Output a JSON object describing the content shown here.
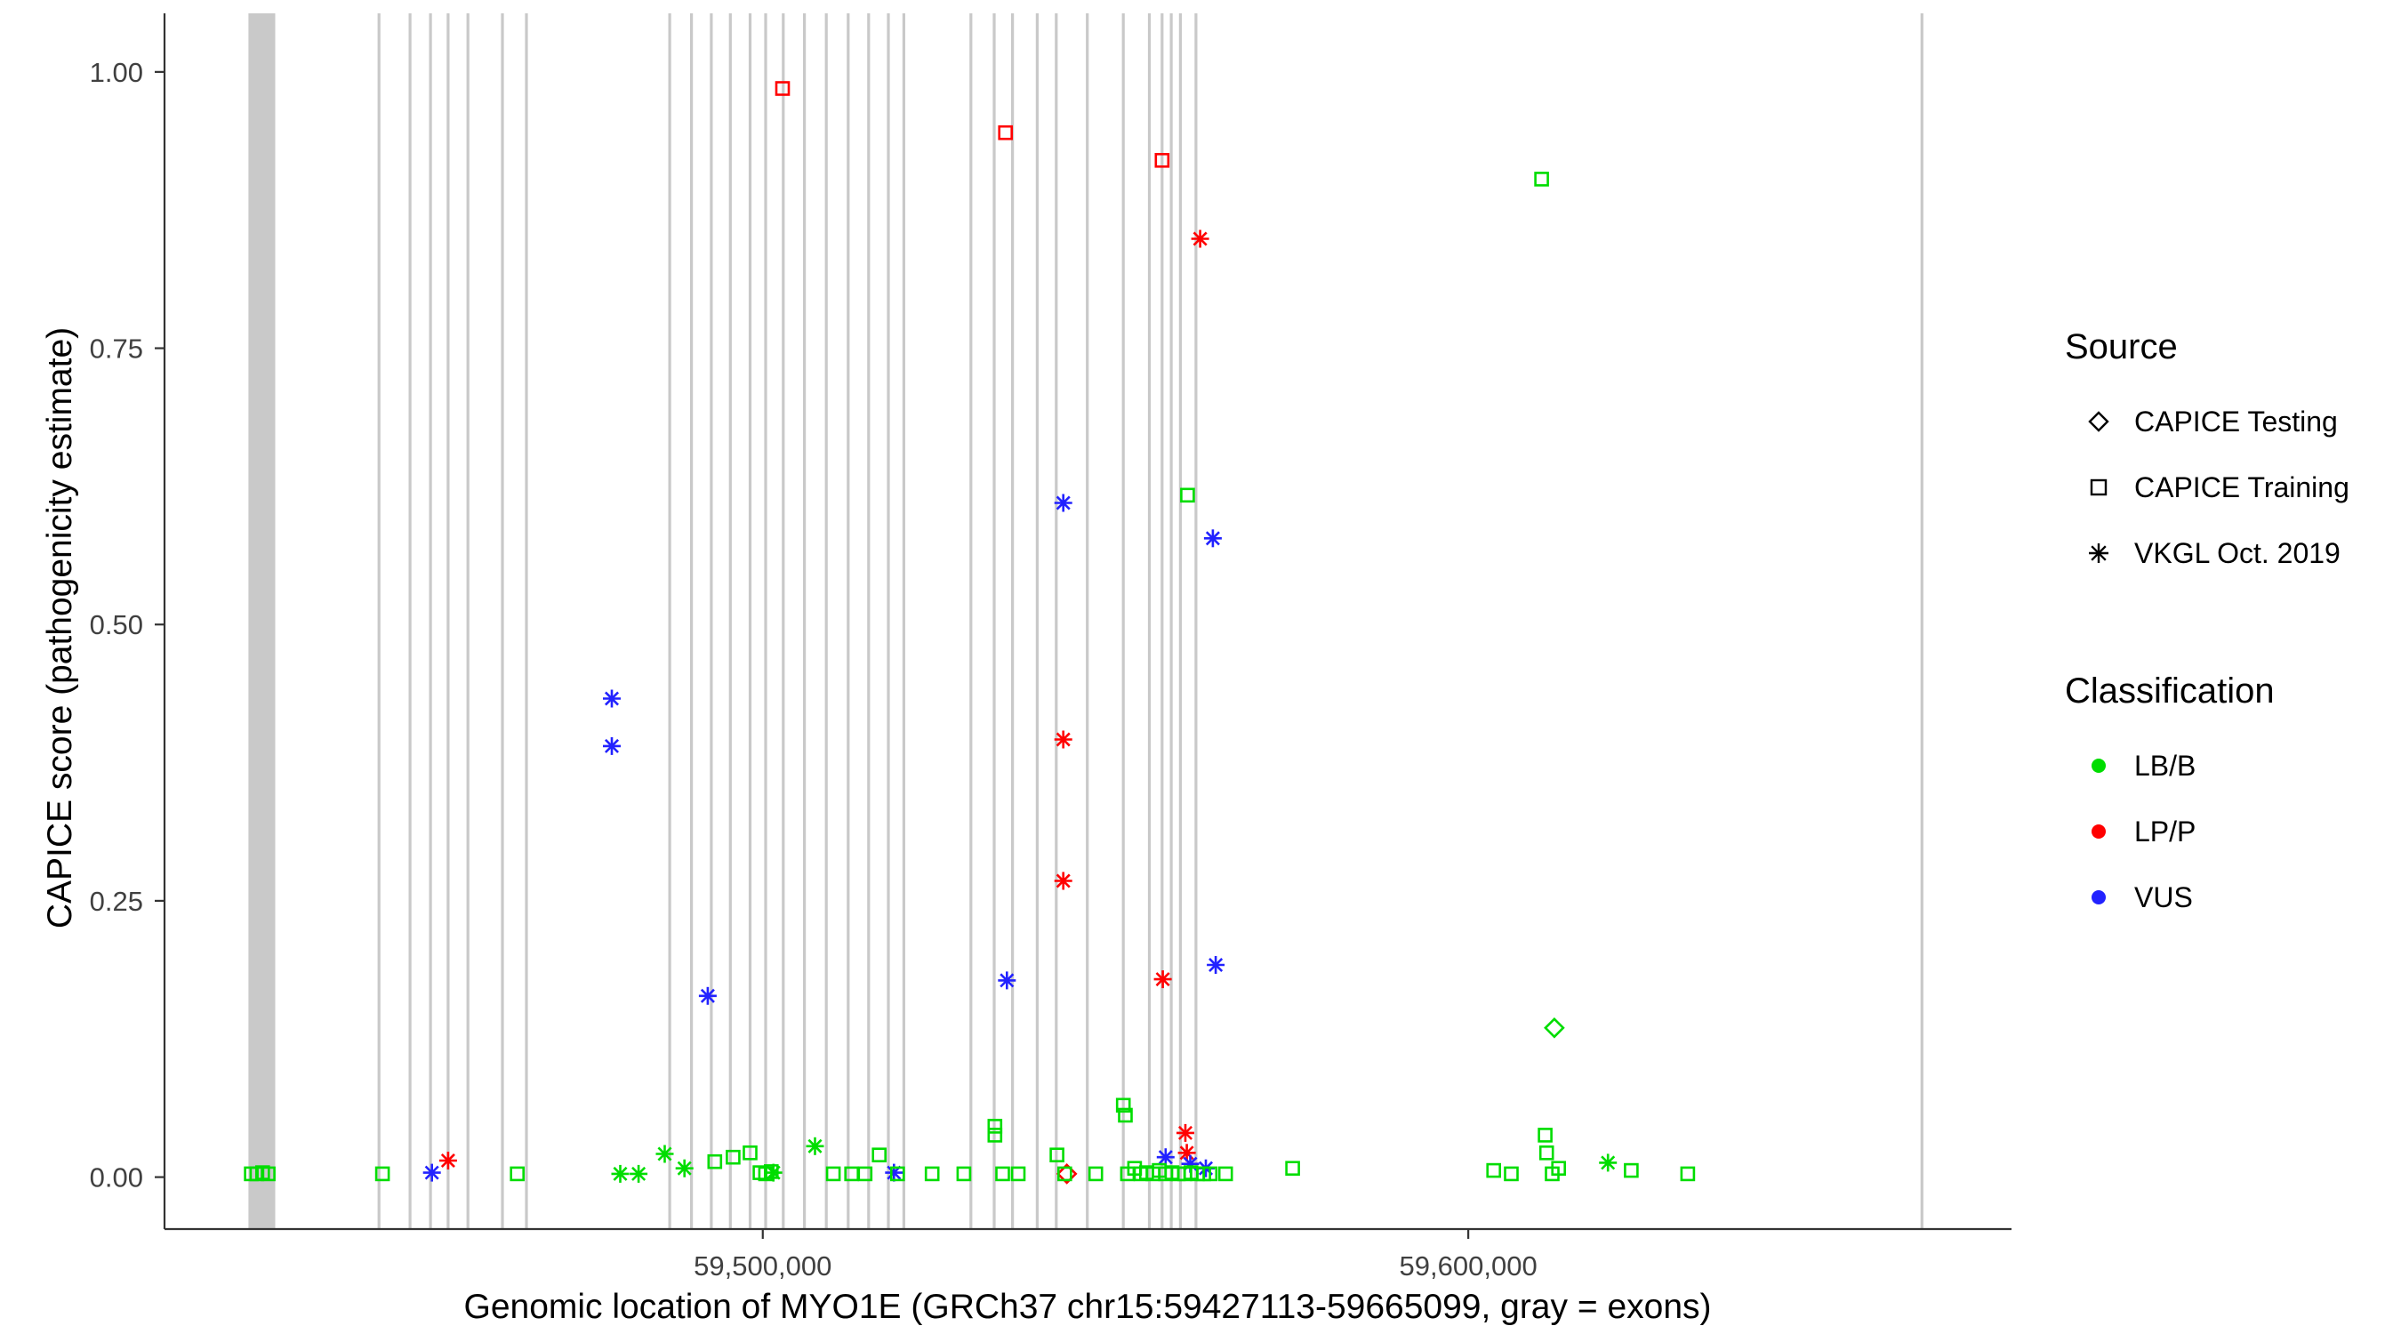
{
  "figure": {
    "y_axis_title": "CAPICE score (pathogenicity estimate)",
    "x_axis_title": "Genomic location of MYO1E (GRCh37 chr15:59427113-59665099, gray = exons)"
  },
  "legend": {
    "source": {
      "title": "Source",
      "items": [
        {
          "label": "CAPICE Testing",
          "shape": "diamond"
        },
        {
          "label": "CAPICE Training",
          "shape": "square"
        },
        {
          "label": "VKGL Oct. 2019",
          "shape": "asterisk"
        }
      ]
    },
    "classification": {
      "title": "Classification",
      "items": [
        {
          "label": "LB/B",
          "color": "#00DD00"
        },
        {
          "label": "LP/P",
          "color": "#FF0000"
        },
        {
          "label": "VUS",
          "color": "#2222FF"
        }
      ]
    }
  },
  "chart_data": {
    "type": "scatter",
    "title": "",
    "xlabel": "Genomic location of MYO1E (GRCh37 chr15:59427113-59665099, gray = exons)",
    "ylabel": "CAPICE score (pathogenicity estimate)",
    "xlim": [
      59415200,
      59677000
    ],
    "ylim": [
      -0.047,
      1.053
    ],
    "grid": "off",
    "legend_position": "right",
    "x_ticks": [
      {
        "value": 59500000,
        "label": "59,500,000"
      },
      {
        "value": 59600000,
        "label": "59,600,000"
      }
    ],
    "y_ticks": [
      {
        "value": 0.0,
        "label": "0.00"
      },
      {
        "value": 0.25,
        "label": "0.25"
      },
      {
        "value": 0.5,
        "label": "0.50"
      },
      {
        "value": 0.75,
        "label": "0.75"
      },
      {
        "value": 1.0,
        "label": "1.00"
      }
    ],
    "exon_color": "#C9C9C9",
    "exons": [
      [
        59427100,
        59430900
      ],
      [
        59445400,
        59445800
      ],
      [
        59449800,
        59450200
      ],
      [
        59452700,
        59453100
      ],
      [
        59455200,
        59455600
      ],
      [
        59458000,
        59458400
      ],
      [
        59462900,
        59463300
      ],
      [
        59466300,
        59466700
      ],
      [
        59486600,
        59487000
      ],
      [
        59489700,
        59490100
      ],
      [
        59492500,
        59492900
      ],
      [
        59495200,
        59495600
      ],
      [
        59498000,
        59498400
      ],
      [
        59500200,
        59500600
      ],
      [
        59502700,
        59503100
      ],
      [
        59505700,
        59506100
      ],
      [
        59508800,
        59509200
      ],
      [
        59511900,
        59512300
      ],
      [
        59514800,
        59515200
      ],
      [
        59517600,
        59518000
      ],
      [
        59519800,
        59520200
      ],
      [
        59529300,
        59529700
      ],
      [
        59532600,
        59533000
      ],
      [
        59535200,
        59535600
      ],
      [
        59538700,
        59539100
      ],
      [
        59541400,
        59541800
      ],
      [
        59545800,
        59546200
      ],
      [
        59550900,
        59551300
      ],
      [
        59554600,
        59555000
      ],
      [
        59556400,
        59556800
      ],
      [
        59557700,
        59558100
      ],
      [
        59559000,
        59559400
      ],
      [
        59561200,
        59561600
      ],
      [
        59664100,
        59664500
      ]
    ],
    "source_shapes": {
      "testing": "diamond",
      "training": "square",
      "vkgl": "asterisk"
    },
    "source_labels": {
      "testing": "CAPICE Testing",
      "training": "CAPICE Training",
      "vkgl": "VKGL Oct. 2019"
    },
    "class_colors": {
      "LB/B": "#00DD00",
      "LP/P": "#FF0000",
      "VUS": "#2222FF"
    },
    "points_format": [
      "genomic_position",
      "capice_score",
      "source",
      "classification"
    ],
    "points": [
      [
        59502800,
        0.985,
        "training",
        "LP/P"
      ],
      [
        59534400,
        0.945,
        "training",
        "LP/P"
      ],
      [
        59556600,
        0.92,
        "training",
        "LP/P"
      ],
      [
        59610400,
        0.903,
        "training",
        "LB/B"
      ],
      [
        59560200,
        0.617,
        "training",
        "LB/B"
      ],
      [
        59562000,
        0.849,
        "vkgl",
        "LP/P"
      ],
      [
        59542600,
        0.396,
        "vkgl",
        "LP/P"
      ],
      [
        59542600,
        0.268,
        "vkgl",
        "LP/P"
      ],
      [
        59556700,
        0.179,
        "vkgl",
        "LP/P"
      ],
      [
        59559900,
        0.04,
        "vkgl",
        "LP/P"
      ],
      [
        59560100,
        0.022,
        "vkgl",
        "LP/P"
      ],
      [
        59455400,
        0.015,
        "vkgl",
        "LP/P"
      ],
      [
        59542600,
        0.61,
        "vkgl",
        "VUS"
      ],
      [
        59563800,
        0.578,
        "vkgl",
        "VUS"
      ],
      [
        59478600,
        0.433,
        "vkgl",
        "VUS"
      ],
      [
        59478600,
        0.39,
        "vkgl",
        "VUS"
      ],
      [
        59564200,
        0.192,
        "vkgl",
        "VUS"
      ],
      [
        59534600,
        0.178,
        "vkgl",
        "VUS"
      ],
      [
        59492200,
        0.164,
        "vkgl",
        "VUS"
      ],
      [
        59557100,
        0.018,
        "vkgl",
        "VUS"
      ],
      [
        59560600,
        0.012,
        "vkgl",
        "VUS"
      ],
      [
        59562800,
        0.008,
        "vkgl",
        "VUS"
      ],
      [
        59453100,
        0.004,
        "vkgl",
        "VUS"
      ],
      [
        59518600,
        0.004,
        "vkgl",
        "VUS"
      ],
      [
        59612200,
        0.135,
        "testing",
        "LB/B"
      ],
      [
        59543100,
        0.003,
        "testing",
        "LP/P"
      ],
      [
        59479800,
        0.003,
        "vkgl",
        "LB/B"
      ],
      [
        59482400,
        0.003,
        "vkgl",
        "LB/B"
      ],
      [
        59486100,
        0.021,
        "vkgl",
        "LB/B"
      ],
      [
        59488900,
        0.008,
        "vkgl",
        "LB/B"
      ],
      [
        59507400,
        0.028,
        "vkgl",
        "LB/B"
      ],
      [
        59619800,
        0.013,
        "vkgl",
        "LB/B"
      ],
      [
        59501500,
        0.004,
        "vkgl",
        "LB/B"
      ],
      [
        59427500,
        0.003,
        "training",
        "LB/B"
      ],
      [
        59428300,
        0.003,
        "training",
        "LB/B"
      ],
      [
        59429100,
        0.004,
        "training",
        "LB/B"
      ],
      [
        59429900,
        0.003,
        "training",
        "LB/B"
      ],
      [
        59446100,
        0.003,
        "training",
        "LB/B"
      ],
      [
        59465200,
        0.003,
        "training",
        "LB/B"
      ],
      [
        59493200,
        0.014,
        "training",
        "LB/B"
      ],
      [
        59495800,
        0.018,
        "training",
        "LB/B"
      ],
      [
        59498200,
        0.022,
        "training",
        "LB/B"
      ],
      [
        59499600,
        0.004,
        "training",
        "LB/B"
      ],
      [
        59500400,
        0.003,
        "training",
        "LB/B"
      ],
      [
        59501200,
        0.005,
        "training",
        "LB/B"
      ],
      [
        59510000,
        0.003,
        "training",
        "LB/B"
      ],
      [
        59512600,
        0.003,
        "training",
        "LB/B"
      ],
      [
        59514500,
        0.003,
        "training",
        "LB/B"
      ],
      [
        59516500,
        0.02,
        "training",
        "LB/B"
      ],
      [
        59519100,
        0.003,
        "training",
        "LB/B"
      ],
      [
        59524000,
        0.003,
        "training",
        "LB/B"
      ],
      [
        59528500,
        0.003,
        "training",
        "LB/B"
      ],
      [
        59532900,
        0.046,
        "training",
        "LB/B"
      ],
      [
        59532900,
        0.038,
        "training",
        "LB/B"
      ],
      [
        59534000,
        0.003,
        "training",
        "LB/B"
      ],
      [
        59536200,
        0.003,
        "training",
        "LB/B"
      ],
      [
        59541700,
        0.02,
        "training",
        "LB/B"
      ],
      [
        59542800,
        0.003,
        "training",
        "LB/B"
      ],
      [
        59547200,
        0.003,
        "training",
        "LB/B"
      ],
      [
        59551100,
        0.065,
        "training",
        "LB/B"
      ],
      [
        59551400,
        0.056,
        "training",
        "LB/B"
      ],
      [
        59551700,
        0.003,
        "training",
        "LB/B"
      ],
      [
        59552700,
        0.008,
        "training",
        "LB/B"
      ],
      [
        59553600,
        0.003,
        "training",
        "LB/B"
      ],
      [
        59554400,
        0.004,
        "training",
        "LB/B"
      ],
      [
        59555300,
        0.003,
        "training",
        "LB/B"
      ],
      [
        59556200,
        0.006,
        "training",
        "LB/B"
      ],
      [
        59557100,
        0.003,
        "training",
        "LB/B"
      ],
      [
        59558000,
        0.004,
        "training",
        "LB/B"
      ],
      [
        59558900,
        0.003,
        "training",
        "LB/B"
      ],
      [
        59559800,
        0.003,
        "training",
        "LB/B"
      ],
      [
        59560700,
        0.004,
        "training",
        "LB/B"
      ],
      [
        59561600,
        0.003,
        "training",
        "LB/B"
      ],
      [
        59562500,
        0.003,
        "training",
        "LB/B"
      ],
      [
        59563400,
        0.003,
        "training",
        "LB/B"
      ],
      [
        59565600,
        0.003,
        "training",
        "LB/B"
      ],
      [
        59575100,
        0.008,
        "training",
        "LB/B"
      ],
      [
        59603600,
        0.006,
        "training",
        "LB/B"
      ],
      [
        59606100,
        0.003,
        "training",
        "LB/B"
      ],
      [
        59610900,
        0.038,
        "training",
        "LB/B"
      ],
      [
        59611100,
        0.022,
        "training",
        "LB/B"
      ],
      [
        59611900,
        0.003,
        "training",
        "LB/B"
      ],
      [
        59612800,
        0.008,
        "training",
        "LB/B"
      ],
      [
        59623100,
        0.006,
        "training",
        "LB/B"
      ],
      [
        59631100,
        0.003,
        "training",
        "LB/B"
      ]
    ]
  }
}
